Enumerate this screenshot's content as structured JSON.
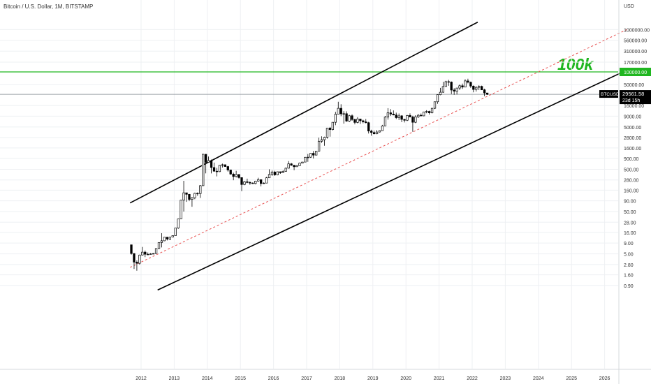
{
  "title": "Bitcoin / U.S. Dollar, 1M, BITSTAMP",
  "currency": "USD",
  "symbol": "BTCUSD",
  "last_price": "29561.58",
  "countdown": "23d 15h",
  "annotation": "100k",
  "horizontal_line_label": "100000.00",
  "colors": {
    "background": "#ffffff",
    "grid": "#eef0f3",
    "candle": "#000000",
    "channel": "#000000",
    "midline": "#e85050",
    "horizontal_line": "#1fb61f",
    "price_line": "#9aa0a6"
  },
  "chart_data": {
    "type": "candlestick",
    "timeframe": "1M",
    "scale": "log",
    "grid": true,
    "xlim": [
      "2011-09-01",
      "2026-10-01"
    ],
    "ylim": [
      0.55,
      1650000
    ],
    "x_ticks": [
      "2012",
      "2013",
      "2014",
      "2015",
      "2016",
      "2017",
      "2018",
      "2019",
      "2020",
      "2021",
      "2022",
      "2023",
      "2024",
      "2025",
      "2026"
    ],
    "y_ticks": [
      "1000000.00",
      "560000.00",
      "310000.00",
      "170000.00",
      "100000.00",
      "50000.00",
      "29561.58",
      "16000.00",
      "9000.00",
      "5000.00",
      "2800.00",
      "1600.00",
      "900.00",
      "500.00",
      "280.00",
      "160.00",
      "90.00",
      "50.00",
      "28.00",
      "16.00",
      "9.00",
      "5.00",
      "2.80",
      "1.60",
      "0.90"
    ],
    "horizontal_line": 100000,
    "last_price": 29561.58,
    "ohlc": [
      [
        "2011-09",
        8.2,
        8.2,
        4.8,
        5.1
      ],
      [
        "2011-10",
        5.1,
        5.2,
        2.2,
        3.2
      ],
      [
        "2011-11",
        3.2,
        3.5,
        2.0,
        3.0
      ],
      [
        "2011-12",
        3.0,
        4.8,
        2.8,
        4.7
      ],
      [
        "2012-01",
        4.7,
        7.3,
        4.6,
        5.5
      ],
      [
        "2012-02",
        5.5,
        6.0,
        4.2,
        4.9
      ],
      [
        "2012-03",
        4.9,
        5.4,
        4.7,
        4.9
      ],
      [
        "2012-04",
        4.9,
        5.2,
        4.8,
        5.0
      ],
      [
        "2012-05",
        5.0,
        5.2,
        4.9,
        5.1
      ],
      [
        "2012-06",
        5.1,
        6.7,
        5.1,
        6.7
      ],
      [
        "2012-07",
        6.7,
        9.4,
        6.5,
        9.3
      ],
      [
        "2012-08",
        9.3,
        15.4,
        7.1,
        10.2
      ],
      [
        "2012-09",
        10.2,
        12.5,
        10.0,
        12.4
      ],
      [
        "2012-10",
        12.4,
        12.6,
        10.4,
        11.2
      ],
      [
        "2012-11",
        11.2,
        12.6,
        10.6,
        12.5
      ],
      [
        "2012-12",
        12.5,
        13.7,
        12.5,
        13.5
      ],
      [
        "2013-01",
        13.5,
        20.5,
        13.3,
        20.4
      ],
      [
        "2013-02",
        20.4,
        34.0,
        19.5,
        33.4
      ],
      [
        "2013-03",
        33.4,
        95.0,
        33.0,
        93.0
      ],
      [
        "2013-04",
        93.0,
        266.0,
        50.0,
        139.0
      ],
      [
        "2013-05",
        139.0,
        140.0,
        85.0,
        128.0
      ],
      [
        "2013-06",
        128.0,
        130.0,
        88.0,
        97.0
      ],
      [
        "2013-07",
        97.0,
        110.0,
        65.0,
        106.0
      ],
      [
        "2013-08",
        106.0,
        140.0,
        98.0,
        135.0
      ],
      [
        "2013-09",
        135.0,
        142.0,
        118.0,
        133.0
      ],
      [
        "2013-10",
        133.0,
        212.0,
        105.0,
        205.0
      ],
      [
        "2013-11",
        205.0,
        1163.0,
        200.0,
        1130.0
      ],
      [
        "2013-12",
        1130.0,
        1150.0,
        400.0,
        730.0
      ],
      [
        "2014-01",
        730.0,
        1000.0,
        720.0,
        800.0
      ],
      [
        "2014-02",
        800.0,
        850.0,
        400.0,
        550.0
      ],
      [
        "2014-03",
        550.0,
        720.0,
        440.0,
        450.0
      ],
      [
        "2014-04",
        450.0,
        540.0,
        340.0,
        440.0
      ],
      [
        "2014-05",
        440.0,
        630.0,
        430.0,
        620.0
      ],
      [
        "2014-06",
        620.0,
        680.0,
        550.0,
        640.0
      ],
      [
        "2014-07",
        640.0,
        650.0,
        570.0,
        580.0
      ],
      [
        "2014-08",
        580.0,
        600.0,
        440.0,
        480.0
      ],
      [
        "2014-09",
        480.0,
        490.0,
        370.0,
        385.0
      ],
      [
        "2014-10",
        385.0,
        415.0,
        275.0,
        337.0
      ],
      [
        "2014-11",
        337.0,
        460.0,
        320.0,
        376.0
      ],
      [
        "2014-12",
        376.0,
        385.0,
        300.0,
        318.0
      ],
      [
        "2015-01",
        318.0,
        320.0,
        152.0,
        218.0
      ],
      [
        "2015-02",
        218.0,
        265.0,
        210.0,
        254.0
      ],
      [
        "2015-03",
        254.0,
        300.0,
        235.0,
        244.0
      ],
      [
        "2015-04",
        244.0,
        260.0,
        215.0,
        236.0
      ],
      [
        "2015-05",
        236.0,
        245.0,
        225.0,
        230.0
      ],
      [
        "2015-06",
        230.0,
        268.0,
        220.0,
        263.0
      ],
      [
        "2015-07",
        263.0,
        315.0,
        255.0,
        284.0
      ],
      [
        "2015-08",
        284.0,
        285.0,
        197.0,
        230.0
      ],
      [
        "2015-09",
        230.0,
        245.0,
        225.0,
        236.0
      ],
      [
        "2015-10",
        236.0,
        330.0,
        235.0,
        314.0
      ],
      [
        "2015-11",
        314.0,
        500.0,
        310.0,
        378.0
      ],
      [
        "2015-12",
        378.0,
        467.0,
        350.0,
        430.0
      ],
      [
        "2016-01",
        430.0,
        460.0,
        350.0,
        369.0
      ],
      [
        "2016-02",
        369.0,
        440.0,
        360.0,
        437.0
      ],
      [
        "2016-03",
        437.0,
        440.0,
        390.0,
        415.0
      ],
      [
        "2016-04",
        415.0,
        470.0,
        410.0,
        448.0
      ],
      [
        "2016-05",
        448.0,
        550.0,
        440.0,
        530.0
      ],
      [
        "2016-06",
        530.0,
        780.0,
        520.0,
        672.0
      ],
      [
        "2016-07",
        672.0,
        705.0,
        600.0,
        624.0
      ],
      [
        "2016-08",
        624.0,
        625.0,
        475.0,
        574.0
      ],
      [
        "2016-09",
        574.0,
        630.0,
        570.0,
        608.0
      ],
      [
        "2016-10",
        608.0,
        720.0,
        600.0,
        698.0
      ],
      [
        "2016-11",
        698.0,
        750.0,
        690.0,
        740.0
      ],
      [
        "2016-12",
        740.0,
        975.0,
        740.0,
        960.0
      ],
      [
        "2017-01",
        960.0,
        1150.0,
        750.0,
        965.0
      ],
      [
        "2017-02",
        965.0,
        1200.0,
        930.0,
        1190.0
      ],
      [
        "2017-03",
        1190.0,
        1350.0,
        900.0,
        1080.0
      ],
      [
        "2017-04",
        1080.0,
        1350.0,
        1070.0,
        1340.0
      ],
      [
        "2017-05",
        1340.0,
        2800.0,
        1330.0,
        2300.0
      ],
      [
        "2017-06",
        2300.0,
        3000.0,
        2100.0,
        2500.0
      ],
      [
        "2017-07",
        2500.0,
        2950.0,
        1800.0,
        2850.0
      ],
      [
        "2017-08",
        2850.0,
        4750.0,
        2650.0,
        4700.0
      ],
      [
        "2017-09",
        4700.0,
        5000.0,
        2950.0,
        4340.0
      ],
      [
        "2017-10",
        4340.0,
        6400.0,
        4150.0,
        6450.0
      ],
      [
        "2017-11",
        6450.0,
        11400.0,
        5500.0,
        10000.0
      ],
      [
        "2017-12",
        10000.0,
        19700.0,
        10000.0,
        13800.0
      ],
      [
        "2018-01",
        13800.0,
        17200.0,
        9000.0,
        10200.0
      ],
      [
        "2018-02",
        10200.0,
        11800.0,
        6000.0,
        10300.0
      ],
      [
        "2018-03",
        10300.0,
        11700.0,
        6600.0,
        6900.0
      ],
      [
        "2018-04",
        6900.0,
        9700.0,
        6500.0,
        9200.0
      ],
      [
        "2018-05",
        9200.0,
        9900.0,
        7000.0,
        7500.0
      ],
      [
        "2018-06",
        7500.0,
        7800.0,
        5750.0,
        6400.0
      ],
      [
        "2018-07",
        6400.0,
        8500.0,
        6100.0,
        7700.0
      ],
      [
        "2018-08",
        7700.0,
        7800.0,
        5900.0,
        7000.0
      ],
      [
        "2018-09",
        7000.0,
        7400.0,
        6100.0,
        6600.0
      ],
      [
        "2018-10",
        6600.0,
        7700.0,
        6100.0,
        6300.0
      ],
      [
        "2018-11",
        6300.0,
        6600.0,
        3500.0,
        4000.0
      ],
      [
        "2018-12",
        4000.0,
        4300.0,
        3100.0,
        3700.0
      ],
      [
        "2019-01",
        3700.0,
        4100.0,
        3350.0,
        3440.0
      ],
      [
        "2019-02",
        3440.0,
        4200.0,
        3370.0,
        3800.0
      ],
      [
        "2019-03",
        3800.0,
        4150.0,
        3700.0,
        4100.0
      ],
      [
        "2019-04",
        4100.0,
        5600.0,
        4050.0,
        5300.0
      ],
      [
        "2019-05",
        5300.0,
        9100.0,
        5300.0,
        8550.0
      ],
      [
        "2019-06",
        8550.0,
        13900.0,
        7450.0,
        10800.0
      ],
      [
        "2019-07",
        10800.0,
        13200.0,
        9100.0,
        10100.0
      ],
      [
        "2019-08",
        10100.0,
        12300.0,
        9400.0,
        9600.0
      ],
      [
        "2019-09",
        9600.0,
        10900.0,
        7700.0,
        8300.0
      ],
      [
        "2019-10",
        8300.0,
        10400.0,
        7300.0,
        9150.0
      ],
      [
        "2019-11",
        9150.0,
        9500.0,
        6500.0,
        7550.0
      ],
      [
        "2019-12",
        7550.0,
        7750.0,
        6400.0,
        7200.0
      ],
      [
        "2020-01",
        7200.0,
        9600.0,
        6900.0,
        9350.0
      ],
      [
        "2020-02",
        9350.0,
        10500.0,
        8450.0,
        8600.0
      ],
      [
        "2020-03",
        8600.0,
        9200.0,
        3850.0,
        6450.0
      ],
      [
        "2020-04",
        6450.0,
        9450.0,
        6150.0,
        8650.0
      ],
      [
        "2020-05",
        8650.0,
        10100.0,
        8150.0,
        9450.0
      ],
      [
        "2020-06",
        9450.0,
        10400.0,
        8900.0,
        9150.0
      ],
      [
        "2020-07",
        9150.0,
        11450.0,
        8950.0,
        11350.0
      ],
      [
        "2020-08",
        11350.0,
        12450.0,
        10550.0,
        11650.0
      ],
      [
        "2020-09",
        11650.0,
        12100.0,
        9850.0,
        10800.0
      ],
      [
        "2020-10",
        10800.0,
        14100.0,
        10450.0,
        13800.0
      ],
      [
        "2020-11",
        13800.0,
        19800.0,
        13200.0,
        19700.0
      ],
      [
        "2020-12",
        19700.0,
        29300.0,
        17600.0,
        28950.0
      ],
      [
        "2021-01",
        28950.0,
        41950.0,
        28150.0,
        33100.0
      ],
      [
        "2021-02",
        33100.0,
        58350.0,
        32300.0,
        45200.0
      ],
      [
        "2021-03",
        45200.0,
        61800.0,
        45000.0,
        58800.0
      ],
      [
        "2021-04",
        58800.0,
        64900.0,
        47000.0,
        57700.0
      ],
      [
        "2021-05",
        57700.0,
        59500.0,
        30000.0,
        37300.0
      ],
      [
        "2021-06",
        37300.0,
        41300.0,
        28800.0,
        35000.0
      ],
      [
        "2021-07",
        35000.0,
        42400.0,
        29300.0,
        41500.0
      ],
      [
        "2021-08",
        41500.0,
        50500.0,
        37350.0,
        47100.0
      ],
      [
        "2021-09",
        47100.0,
        52900.0,
        39600.0,
        43800.0
      ],
      [
        "2021-10",
        43800.0,
        67000.0,
        43300.0,
        61300.0
      ],
      [
        "2021-11",
        61300.0,
        69000.0,
        53300.0,
        57000.0
      ],
      [
        "2021-12",
        57000.0,
        59100.0,
        42000.0,
        46200.0
      ],
      [
        "2022-01",
        46200.0,
        48000.0,
        32950.0,
        38500.0
      ],
      [
        "2022-02",
        38500.0,
        45800.0,
        34300.0,
        43200.0
      ],
      [
        "2022-03",
        43200.0,
        48200.0,
        37200.0,
        45500.0
      ],
      [
        "2022-04",
        45500.0,
        47450.0,
        37700.0,
        37700.0
      ],
      [
        "2022-05",
        37700.0,
        40000.0,
        26700.0,
        31800.0
      ],
      [
        "2022-06",
        31800.0,
        31900.0,
        28600.0,
        29561.58
      ]
    ],
    "channel": {
      "upper": [
        [
          "2011-09-01",
          80
        ],
        [
          "2022-03-01",
          1500000
        ]
      ],
      "lower": [
        [
          "2012-07-01",
          0.7
        ],
        [
          "2026-09-01",
          110000
        ]
      ],
      "mid": [
        [
          "2011-09-01",
          2.4
        ],
        [
          "2026-09-01",
          1000000
        ]
      ]
    }
  }
}
